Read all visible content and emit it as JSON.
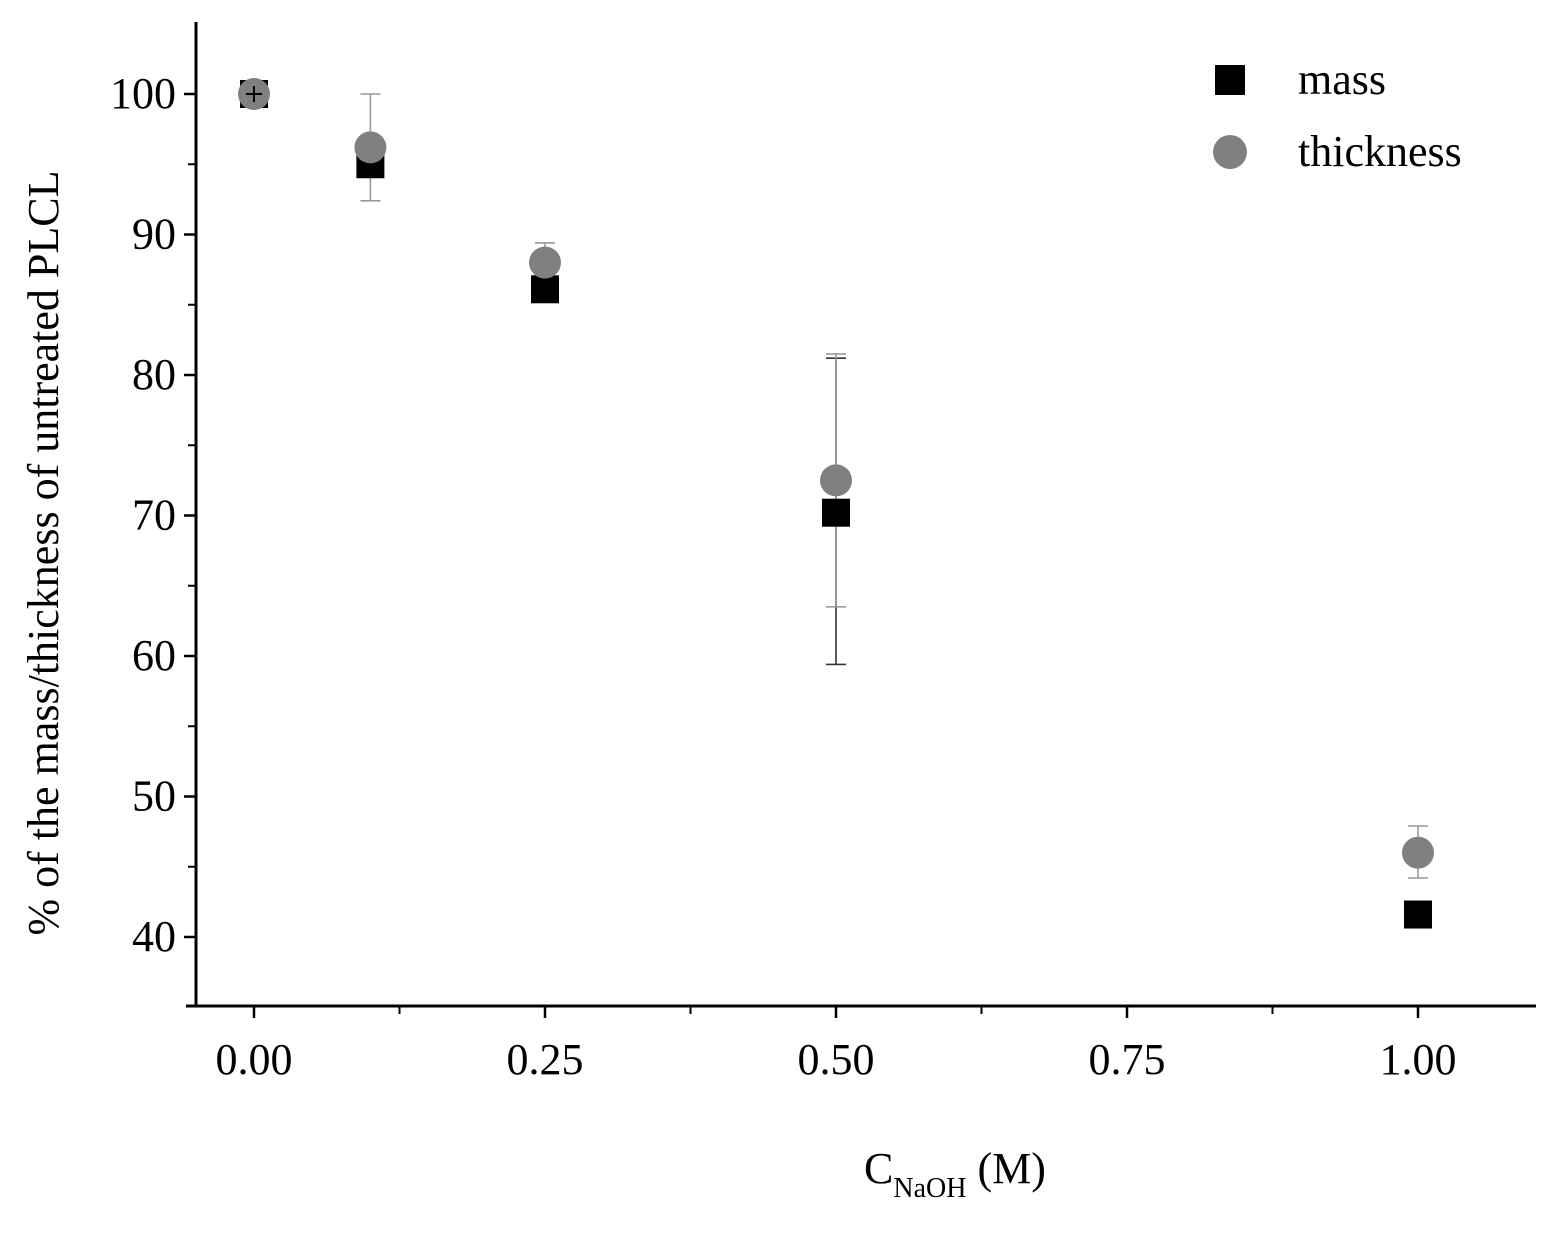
{
  "chart_data": {
    "type": "scatter",
    "xlabel": {
      "main": "C",
      "sub": "NaOH",
      "suffix": " (M)"
    },
    "ylabel": "% of the mass/thickness of untreated PLCL",
    "xlim": [
      -0.05,
      1.1
    ],
    "ylim": [
      35,
      105
    ],
    "x_ticks": [
      {
        "value": 0.0,
        "label": "0.00"
      },
      {
        "value": 0.25,
        "label": "0.25"
      },
      {
        "value": 0.5,
        "label": "0.50"
      },
      {
        "value": 0.75,
        "label": "0.75"
      },
      {
        "value": 1.0,
        "label": "1.00"
      }
    ],
    "x_minor_ticks": [
      0.125,
      0.375,
      0.625,
      0.875
    ],
    "y_ticks": [
      {
        "value": 40,
        "label": "40"
      },
      {
        "value": 50,
        "label": "50"
      },
      {
        "value": 60,
        "label": "60"
      },
      {
        "value": 70,
        "label": "70"
      },
      {
        "value": 80,
        "label": "80"
      },
      {
        "value": 90,
        "label": "90"
      },
      {
        "value": 100,
        "label": "100"
      }
    ],
    "y_minor_ticks": [
      45,
      55,
      65,
      75,
      85,
      95
    ],
    "grid": false,
    "legend_position": "top-right",
    "series": [
      {
        "name": "mass",
        "marker": "square",
        "color": "#000000",
        "error_color": "#333333",
        "x": [
          0.0,
          0.1,
          0.25,
          0.5,
          1.0
        ],
        "y": [
          100.0,
          95.0,
          86.1,
          70.2,
          41.6
        ],
        "err_low": [
          0.3,
          0.3,
          0.3,
          10.8,
          0.2
        ],
        "err_high": [
          0.3,
          0.3,
          0.3,
          11.0,
          0.2
        ]
      },
      {
        "name": "thickness",
        "marker": "circle",
        "color": "#808080",
        "error_color": "#999999",
        "x": [
          0.0,
          0.1,
          0.25,
          0.5,
          1.0
        ],
        "y": [
          100.0,
          96.2,
          88.0,
          72.5,
          46.0
        ],
        "err_low": [
          0.3,
          3.8,
          1.4,
          9.0,
          1.8
        ],
        "err_high": [
          0.3,
          3.8,
          1.4,
          9.0,
          1.9
        ]
      }
    ]
  }
}
